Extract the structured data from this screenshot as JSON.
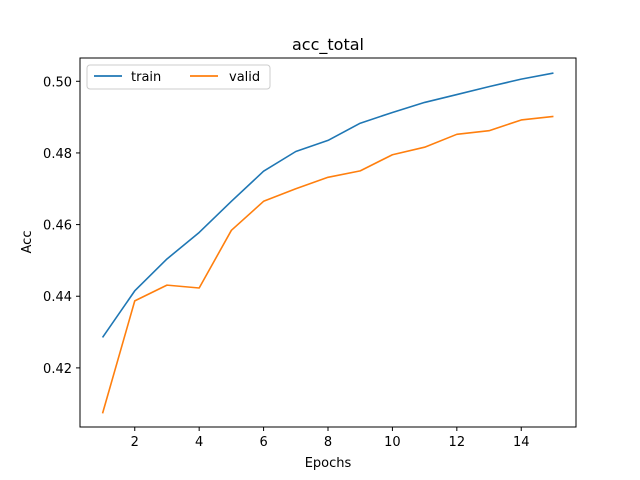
{
  "chart_data": {
    "type": "line",
    "title": "acc_total",
    "xlabel": "Epochs",
    "ylabel": "Acc",
    "x": [
      1,
      2,
      3,
      4,
      5,
      6,
      7,
      8,
      9,
      10,
      11,
      12,
      13,
      14,
      15
    ],
    "xlim": [
      0.3,
      15.7
    ],
    "ylim": [
      0.4035,
      0.5065
    ],
    "xticks": [
      2,
      4,
      6,
      8,
      10,
      12,
      14
    ],
    "yticks": [
      0.42,
      0.44,
      0.46,
      0.48,
      0.5
    ],
    "ytick_labels": [
      "0.42",
      "0.44",
      "0.46",
      "0.48",
      "0.50"
    ],
    "grid": false,
    "legend_position": "top-left",
    "series": [
      {
        "name": "train",
        "color": "#1f77b4",
        "values": [
          0.4285,
          0.4415,
          0.4504,
          0.4578,
          0.4665,
          0.4749,
          0.4804,
          0.4835,
          0.4883,
          0.4913,
          0.4941,
          0.4963,
          0.4985,
          0.5006,
          0.5023
        ]
      },
      {
        "name": "valid",
        "color": "#ff7f0e",
        "values": [
          0.4073,
          0.4387,
          0.4431,
          0.4423,
          0.4584,
          0.4665,
          0.47,
          0.4732,
          0.475,
          0.4795,
          0.4816,
          0.4852,
          0.4862,
          0.4892,
          0.4902
        ]
      }
    ]
  }
}
